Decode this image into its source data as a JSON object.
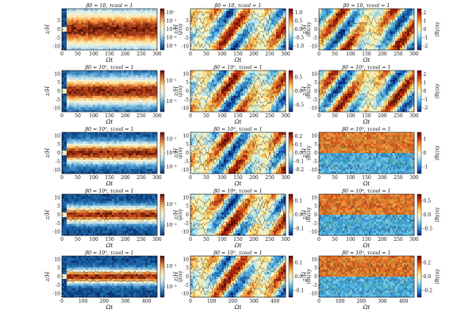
{
  "figure": {
    "rows": 5,
    "columns": 3,
    "column_quantities": [
      "⟨ρ⟩xy",
      "⟨Bx⟩xy",
      "⟨By⟩xy"
    ]
  },
  "colors": {
    "density_map": [
      "#08306b",
      "#2171b5",
      "#6baed6",
      "#c6e4f0",
      "#f2f5d8",
      "#fde3a2",
      "#f59a3d",
      "#c2471b",
      "#4a0c04"
    ],
    "field_map": [
      "#0b1e6e",
      "#1f6fc4",
      "#4fb4e0",
      "#b9e6ef",
      "#fbf7c4",
      "#f9cc62",
      "#ea7a2a",
      "#b7260f",
      "#5c0a04"
    ],
    "contour": "#1a1a1a",
    "contour_alt": "#2e7d32"
  },
  "chart_data": [
    {
      "type": "heatmap",
      "row": 1,
      "col": 1,
      "title": "β0 = 10, τcool = 1",
      "xlabel": "Ωt",
      "ylabel": "z/H",
      "xlim": [
        0,
        300
      ],
      "ylim": [
        -12,
        12
      ],
      "xticks": [
        0,
        50,
        100,
        150,
        200,
        250,
        300
      ],
      "yticks": [
        -10,
        -5,
        0,
        5
      ],
      "colorbar": {
        "label": "⟨ρ⟩xy",
        "scale": "log",
        "ticks": [
          "10^0",
          "10^-1",
          "10^-2",
          "10^-3",
          "10^-4"
        ]
      }
    },
    {
      "type": "heatmap",
      "row": 1,
      "col": 2,
      "title": "β0 = 10, τcool = 1",
      "xlabel": "Ωt",
      "ylabel": "z/H",
      "xlim": [
        0,
        300
      ],
      "ylim": [
        -12,
        12
      ],
      "xticks": [
        0,
        50,
        100,
        150,
        200,
        250,
        300
      ],
      "yticks": [
        -10,
        -5,
        0,
        5
      ],
      "colorbar": {
        "label": "⟨Bx⟩xy",
        "scale": "linear",
        "ticks": [
          "1.0",
          "0.5",
          "0.0",
          "-0.5",
          "-1.0"
        ]
      }
    },
    {
      "type": "heatmap",
      "row": 1,
      "col": 3,
      "title": "β0 = 10, τcool = 1",
      "xlabel": "Ωt",
      "ylabel": "z/H",
      "xlim": [
        0,
        300
      ],
      "ylim": [
        -12,
        12
      ],
      "xticks": [
        0,
        50,
        100,
        150,
        200,
        250,
        300
      ],
      "yticks": [
        -10,
        -5,
        0,
        5
      ],
      "colorbar": {
        "label": "⟨By⟩xy",
        "scale": "linear",
        "ticks": [
          "2",
          "1",
          "0",
          "-1",
          "-2"
        ]
      }
    },
    {
      "type": "heatmap",
      "row": 2,
      "col": 1,
      "title": "β0 = 10², τcool = 1",
      "xlabel": "Ωt",
      "ylabel": "z/H",
      "xlim": [
        0,
        300
      ],
      "ylim": [
        -12,
        12
      ],
      "xticks": [
        0,
        50,
        100,
        150,
        200,
        250,
        300
      ],
      "yticks": [
        -10,
        -5,
        0,
        5,
        10
      ],
      "colorbar": {
        "label": "⟨ρ⟩xy",
        "scale": "log",
        "ticks": [
          "10^-1",
          "10^-2"
        ]
      }
    },
    {
      "type": "heatmap",
      "row": 2,
      "col": 2,
      "title": "β0 = 10², τcool = 1",
      "xlabel": "Ωt",
      "ylabel": "z/H",
      "xlim": [
        0,
        300
      ],
      "ylim": [
        -12,
        12
      ],
      "xticks": [
        0,
        50,
        100,
        150,
        200,
        250,
        300
      ],
      "yticks": [
        -10,
        -5,
        0,
        5,
        10
      ],
      "colorbar": {
        "label": "⟨Bx⟩xy",
        "scale": "linear",
        "ticks": [
          "0.5",
          "0.0",
          "-0.5"
        ]
      }
    },
    {
      "type": "heatmap",
      "row": 2,
      "col": 3,
      "title": "β0 = 10², τcool = 1",
      "xlabel": "Ωt",
      "ylabel": "z/H",
      "xlim": [
        0,
        300
      ],
      "ylim": [
        -12,
        12
      ],
      "xticks": [
        0,
        50,
        100,
        150,
        200,
        250,
        300
      ],
      "yticks": [
        -10,
        -5,
        0,
        5,
        10
      ],
      "colorbar": {
        "label": "⟨By⟩xy",
        "scale": "linear",
        "ticks": [
          "2",
          "1",
          "0",
          "-1",
          "-2"
        ]
      }
    },
    {
      "type": "heatmap",
      "row": 3,
      "col": 1,
      "title": "β0 = 10³, τcool = 1",
      "xlabel": "Ωt",
      "ylabel": "z/H",
      "xlim": [
        0,
        300
      ],
      "ylim": [
        -12,
        12
      ],
      "xticks": [
        0,
        50,
        100,
        150,
        200,
        250,
        300
      ],
      "yticks": [
        -10,
        -5,
        0,
        5,
        10
      ],
      "colorbar": {
        "label": "⟨ρ⟩xy",
        "scale": "log",
        "ticks": [
          "10^-1",
          "10^-2",
          "10^-3"
        ]
      }
    },
    {
      "type": "heatmap",
      "row": 3,
      "col": 2,
      "title": "β0 = 10³, τcool = 1",
      "xlabel": "Ωt",
      "ylabel": "z/H",
      "xlim": [
        0,
        300
      ],
      "ylim": [
        -12,
        12
      ],
      "xticks": [
        0,
        50,
        100,
        150,
        200,
        250,
        300
      ],
      "yticks": [
        -10,
        -5,
        0,
        5,
        10
      ],
      "colorbar": {
        "label": "⟨Bx⟩xy",
        "scale": "linear",
        "ticks": [
          "0.2",
          "0.1",
          "0.0",
          "-0.1",
          "-0.2"
        ]
      }
    },
    {
      "type": "heatmap",
      "row": 3,
      "col": 3,
      "title": "β0 = 10³, τcool = 1",
      "xlabel": "Ωt",
      "ylabel": "z/H",
      "xlim": [
        0,
        300
      ],
      "ylim": [
        -12,
        12
      ],
      "xticks": [
        0,
        50,
        100,
        150,
        200,
        250,
        300
      ],
      "yticks": [
        -10,
        -5,
        0,
        5,
        10
      ],
      "colorbar": {
        "label": "⟨By⟩xy",
        "scale": "linear",
        "ticks": [
          "1",
          "0",
          "-1"
        ]
      }
    },
    {
      "type": "heatmap",
      "row": 4,
      "col": 1,
      "title": "β0 = 10⁴, τcool = 1",
      "xlabel": "Ωt",
      "ylabel": "z/H",
      "xlim": [
        0,
        300
      ],
      "ylim": [
        -12,
        12
      ],
      "xticks": [
        0,
        50,
        100,
        150,
        200,
        250,
        300
      ],
      "yticks": [
        -10,
        -5,
        0,
        5,
        10
      ],
      "colorbar": {
        "label": "⟨ρ⟩xy",
        "scale": "log",
        "ticks": [
          "10^-1",
          "10^-2"
        ]
      }
    },
    {
      "type": "heatmap",
      "row": 4,
      "col": 2,
      "title": "β0 = 10⁴, τcool = 1",
      "xlabel": "Ωt",
      "ylabel": "z/H",
      "xlim": [
        0,
        300
      ],
      "ylim": [
        -12,
        12
      ],
      "xticks": [
        0,
        50,
        100,
        150,
        200,
        250,
        300
      ],
      "yticks": [
        -10,
        -5,
        0,
        5,
        10
      ],
      "colorbar": {
        "label": "⟨Bx⟩xy",
        "scale": "linear",
        "ticks": [
          "0.1",
          "0.0",
          "-0.1"
        ]
      }
    },
    {
      "type": "heatmap",
      "row": 4,
      "col": 3,
      "title": "β0 = 10⁴, τcool = 1",
      "xlabel": "Ωt",
      "ylabel": "z/H",
      "xlim": [
        0,
        300
      ],
      "ylim": [
        -12,
        12
      ],
      "xticks": [
        0,
        50,
        100,
        150,
        200,
        250,
        300
      ],
      "yticks": [
        -10,
        -5,
        0,
        5,
        10
      ],
      "colorbar": {
        "label": "⟨By⟩xy",
        "scale": "linear",
        "ticks": [
          "0.5",
          "0.0",
          "-0.5"
        ]
      }
    },
    {
      "type": "heatmap",
      "row": 5,
      "col": 1,
      "title": "β0 = 10⁵, τcool = 1",
      "xlabel": "Ωt",
      "ylabel": "z/H",
      "xlim": [
        0,
        450
      ],
      "ylim": [
        -12,
        12
      ],
      "xticks": [
        0,
        100,
        200,
        300,
        400
      ],
      "yticks": [
        -10,
        -5,
        0,
        5,
        10
      ],
      "colorbar": {
        "label": "⟨ρ⟩xy",
        "scale": "log",
        "ticks": [
          "10^-1",
          "10^-2"
        ]
      }
    },
    {
      "type": "heatmap",
      "row": 5,
      "col": 2,
      "title": "β0 = 10⁵, τcool = 1",
      "xlabel": "Ωt",
      "ylabel": "z/H",
      "xlim": [
        0,
        450
      ],
      "ylim": [
        -12,
        12
      ],
      "xticks": [
        0,
        100,
        200,
        300,
        400
      ],
      "yticks": [
        -10,
        -5,
        0,
        5,
        10
      ],
      "colorbar": {
        "label": "⟨Bx⟩xy",
        "scale": "linear",
        "ticks": [
          "0.1",
          "0.0",
          "-0.1"
        ]
      }
    },
    {
      "type": "heatmap",
      "row": 5,
      "col": 3,
      "title": "β0 = 10⁵, τcool = 1",
      "xlabel": "Ωt",
      "ylabel": "z/H",
      "xlim": [
        0,
        450
      ],
      "ylim": [
        -12,
        12
      ],
      "xticks": [
        0,
        100,
        200,
        300,
        400
      ],
      "yticks": [
        -10,
        -5,
        0,
        5,
        10
      ],
      "colorbar": {
        "label": "⟨By⟩xy",
        "scale": "linear",
        "ticks": [
          "0.2",
          "0.0",
          "-0.2"
        ]
      }
    }
  ]
}
